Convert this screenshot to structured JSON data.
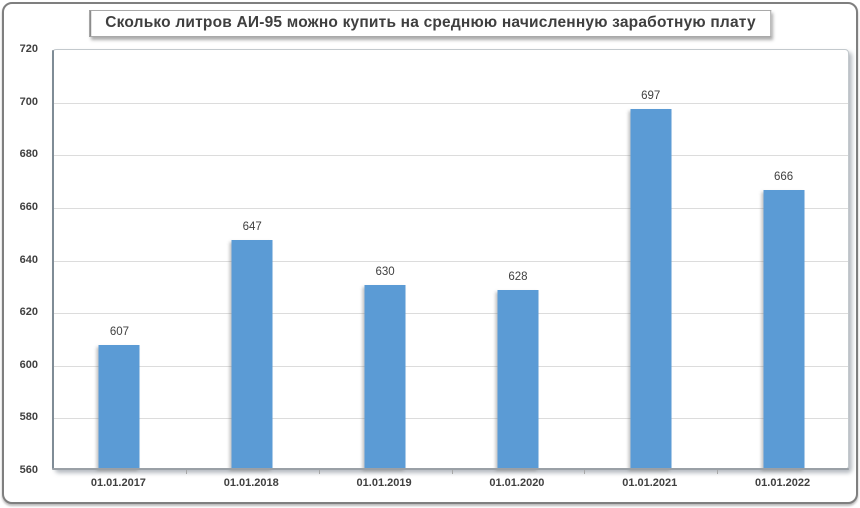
{
  "chart_data": {
    "type": "bar",
    "title": "Сколько литров АИ-95 можно купить на среднюю начисленную заработную плату",
    "categories": [
      "01.01.2017",
      "01.01.2018",
      "01.01.2019",
      "01.01.2020",
      "01.01.2021",
      "01.01.2022"
    ],
    "values": [
      607,
      647,
      630,
      628,
      697,
      666
    ],
    "xlabel": "",
    "ylabel": "",
    "ylim": [
      560,
      720
    ],
    "ytick_step": 20,
    "grid": true,
    "legend": "none",
    "bar_color": "#5B9BD5",
    "text_color": "#404040",
    "gridline_color": "#dcdcdc"
  }
}
